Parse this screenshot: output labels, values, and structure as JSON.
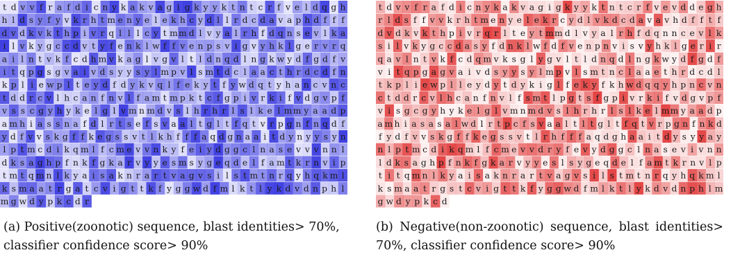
{
  "figure": {
    "panels": [
      {
        "id": "a",
        "caption_label": "(a)",
        "caption_text": "Positive(zoonotic) sequence, blast identities> 70%, classifier confidence score> 90%",
        "color_hex": "#2b2bdf",
        "lines": [
          "tdvvfrafdicnykakvagigkyyktntcrfveldqgh",
          "hldsyfyvkrhtmenyelekhcydllrdcdavaphdfff",
          "dvdkvkthpivrqlllcytmmdlvyalrhfdqnsevlka",
          "ilvkygccdvtyfenklwffvenpsvigvyhklgervrq",
          "ailntvkfcdhmvkaglvgvltldnqdlngkwydfgdfv",
          "itqpgsgvaivdsyysylmpvlsmtdclaacthrdcdfn",
          "kpliewplteydfdykvqlfekytfywdqtyhancvnc",
          "tddrcvlhcanfnvlfamtmpktcfgpivrkifvdgvpf",
          "vsscgyhykelglvmnmdvslhrhrlslkelmmyaadp",
          "amhiassnafdlrtsefsvaaltgltfqtvrpgnfnqdf",
          "ydfvvskgffkegssvtlkhfffaqdgnaaitdynyysyn",
          "lptmcdikqmlfcmevvnkyfeiydggclnasevvvnnl",
          "dksaghpfnkfgkarvyyesmsygeqdelfamtkrnvip",
          "tmtqmnlkyaisaknrartvagvsilstmtnrqyhqkml",
          "ksmaatrgatcvigttkfyggwdfmlktlykdvdnphl",
          "mgwdypkcdr"
        ]
      },
      {
        "id": "b",
        "caption_label": "(b)",
        "caption_text": "Negative(non-zoonotic) sequence, blast identities> 70%, classifier confidence score> 90%",
        "color_hex": "#e02a2a",
        "lines": [
          "tdvvfrafdicnykakvagigkyyktntcrfvevddegh",
          "rldsffvvkrhtmenyelekrcydlvkdcdavavhdfftf",
          "dvdkvkthpivrqrlteytmmdlvyalrhfdqnncevlk",
          "silvkygccdasyfdnklwfdfvenpnvisvyhklgerir",
          "qavlntvkfcdqmvksglygvltldnqdlngkwydfgdf",
          "vitqpgagvaivdsyysylmpvlsmtnclaaethrdcdl",
          "tkpliewplleydytdykiglfekyfkhwdqqyhpncvn",
          "ctddrcvlhcanfnvlfsmtlpgtsfgpivrkifvdgvpf",
          "visgcgyhykelglvmnmdvslhrhrlslkelmmyaadp",
          "amhiasasalwdlrtpcfsvaaltltgltfqtvrpgnfnkd",
          "fydfvvskgffkegssvtlrhfffaqdghaaitdysyyay",
          "nlptmcdikqmlfcmevvdryfevydggclnasevivnn",
          "ldksaghpfnkfgkarvyyeslsygeqdelfamtkrnvlp",
          "titqmnlkyaisaknrartvagvsilstmtnrqyhqkml",
          "ksmaatrgstcvigttkfyggwdfmlktlykdvdnphlm",
          "gwdypkcd"
        ]
      }
    ]
  }
}
